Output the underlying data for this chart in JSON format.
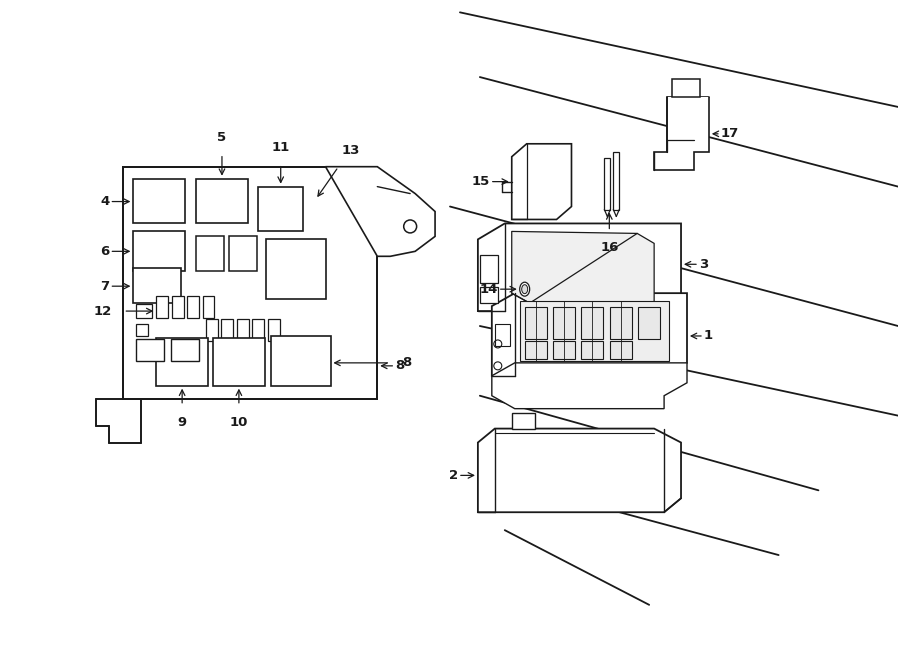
{
  "bg_color": "#ffffff",
  "line_color": "#1a1a1a",
  "fig_width": 9.0,
  "fig_height": 6.61,
  "dpi": 100,
  "xlim": [
    0,
    9.0
  ],
  "ylim": [
    0,
    6.61
  ],
  "car_lines": [
    [
      [
        4.6,
        6.5
      ],
      [
        9.0,
        5.55
      ]
    ],
    [
      [
        4.8,
        5.85
      ],
      [
        9.0,
        4.75
      ]
    ],
    [
      [
        4.5,
        4.55
      ],
      [
        9.0,
        3.35
      ]
    ],
    [
      [
        4.8,
        3.35
      ],
      [
        9.0,
        2.45
      ]
    ],
    [
      [
        4.8,
        2.65
      ],
      [
        8.2,
        1.7
      ]
    ],
    [
      [
        5.2,
        1.75
      ],
      [
        7.8,
        1.05
      ]
    ],
    [
      [
        5.05,
        1.3
      ],
      [
        6.5,
        0.55
      ]
    ]
  ]
}
